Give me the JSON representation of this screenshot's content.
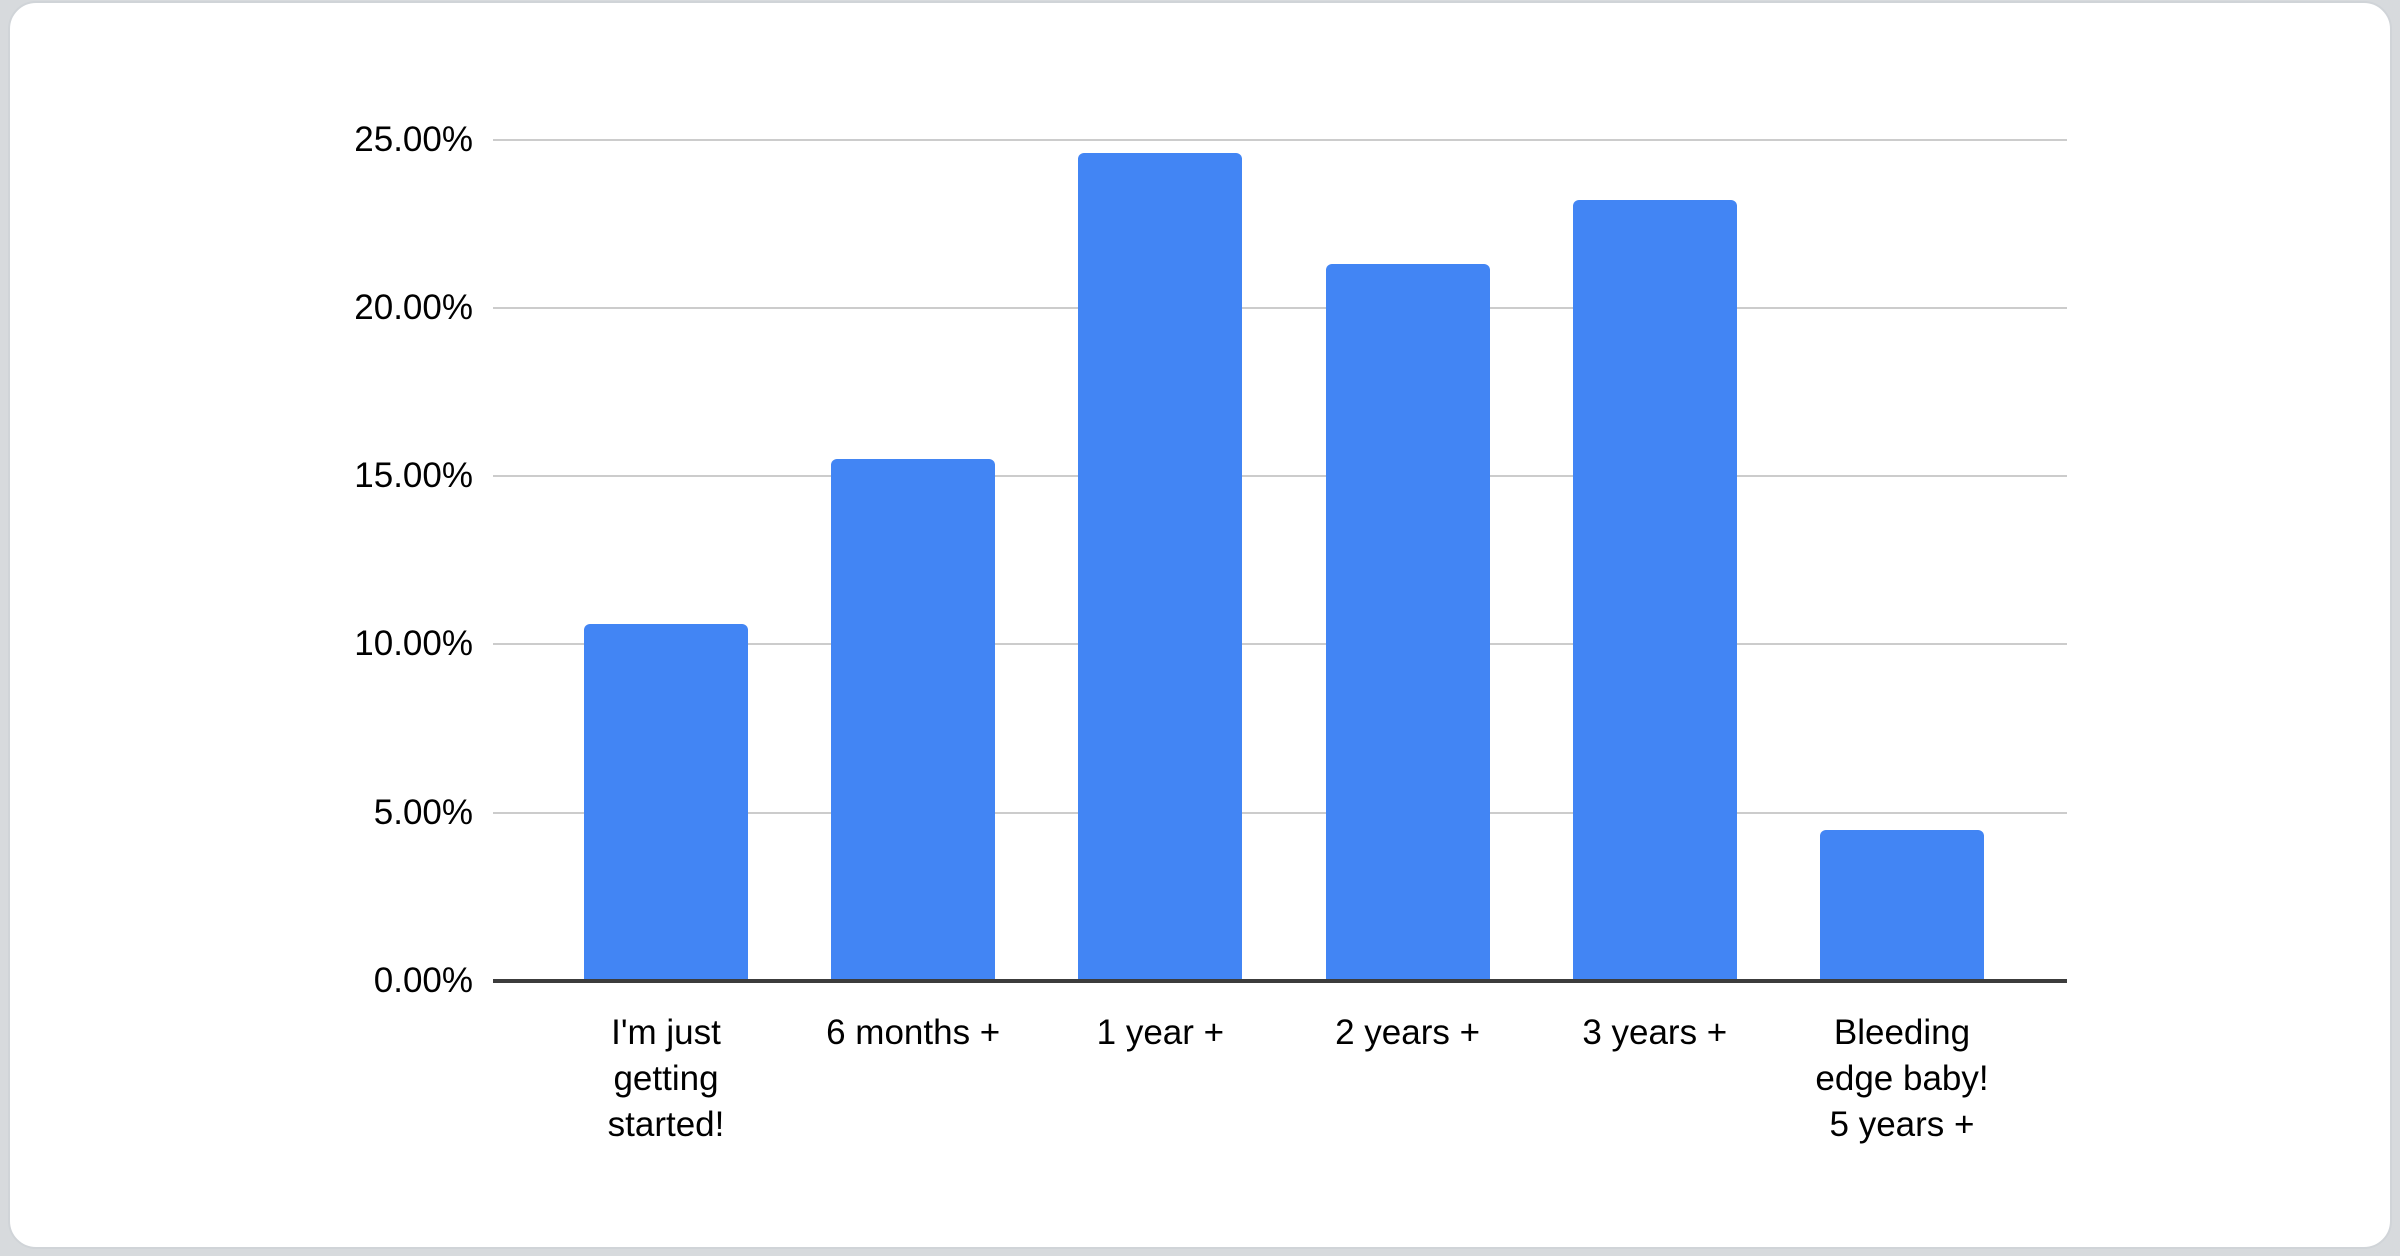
{
  "page": {
    "background_color": "#d7dadd",
    "card": {
      "background_color": "#ffffff",
      "border_color": "#d0d4d8"
    }
  },
  "chart_data": {
    "type": "bar",
    "title": "",
    "categories": [
      "I'm just getting started!",
      "6 months +",
      "1 year +",
      "2 years +",
      "3 years +",
      "Bleeding edge baby! 5 years +"
    ],
    "category_label_lines": [
      [
        "I'm just",
        "getting",
        "started!"
      ],
      [
        "6 months +"
      ],
      [
        "1 year +"
      ],
      [
        "2 years +"
      ],
      [
        "3 years +"
      ],
      [
        "Bleeding",
        "edge baby!",
        "5 years +"
      ]
    ],
    "values": [
      10.6,
      15.5,
      24.6,
      21.3,
      23.2,
      4.5
    ],
    "value_unit": "%",
    "xlabel": "",
    "ylabel": "",
    "ylim": [
      0,
      25
    ],
    "y_ticks": [
      {
        "value": 0,
        "label": "0.00%"
      },
      {
        "value": 5,
        "label": "5.00%"
      },
      {
        "value": 10,
        "label": "10.00%"
      },
      {
        "value": 15,
        "label": "15.00%"
      },
      {
        "value": 20,
        "label": "20.00%"
      },
      {
        "value": 25,
        "label": "25.00%"
      }
    ],
    "grid": true,
    "legend_position": "none",
    "colors": {
      "bar": "#4285f4",
      "gridline": "#cccccc",
      "axis_line": "#3c3c3c",
      "tick_text": "#000000"
    }
  }
}
